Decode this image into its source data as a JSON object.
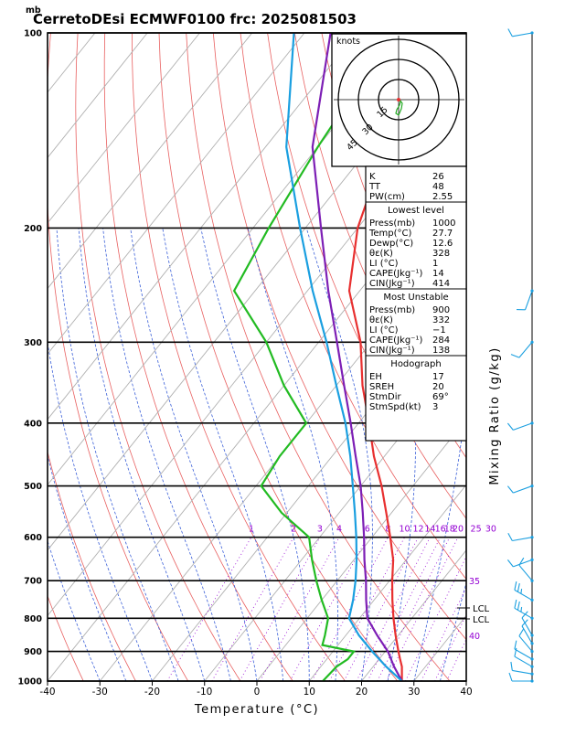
{
  "title": "CerretoDEsi ECMWF0100  frc: 2025081503",
  "pressure_unit": "mb",
  "xlabel": "Temperature (°C)",
  "right_label": "Mixing Ratio (g/kg)",
  "hodograph": {
    "unit": "knots",
    "ring_labels": [
      "15",
      "30",
      "45"
    ]
  },
  "indices": {
    "top": [
      {
        "label": "K",
        "value": "26"
      },
      {
        "label": "TT",
        "value": "48"
      },
      {
        "label": "PW(cm)",
        "value": "2.55"
      }
    ],
    "lowest_level": {
      "heading": "Lowest level",
      "rows": [
        {
          "label": "Press(mb)",
          "value": "1000"
        },
        {
          "label": "Temp(°C)",
          "value": "27.7"
        },
        {
          "label": "Dewp(°C)",
          "value": "12.6"
        },
        {
          "label": "θε(K)",
          "value": "328"
        },
        {
          "label": "LI (°C)",
          "value": "1"
        },
        {
          "label": "CAPE(Jkg⁻¹)",
          "value": "14"
        },
        {
          "label": "CIN(Jkg⁻¹)",
          "value": "414"
        }
      ]
    },
    "most_unstable": {
      "heading": "Most Unstable",
      "rows": [
        {
          "label": "Press(mb)",
          "value": "900"
        },
        {
          "label": "θε(K)",
          "value": "332"
        },
        {
          "label": "LI (°C)",
          "value": "−1"
        },
        {
          "label": "CAPE(Jkg⁻¹)",
          "value": "284"
        },
        {
          "label": "CIN(Jkg⁻¹)",
          "value": "138"
        }
      ]
    },
    "hodograph_box": {
      "heading": "Hodograph",
      "rows": [
        {
          "label": "EH",
          "value": "17"
        },
        {
          "label": "SREH",
          "value": "20"
        },
        {
          "label": "StmDir",
          "value": "69°"
        },
        {
          "label": "StmSpd(kt)",
          "value": "3"
        }
      ]
    }
  },
  "lcl_labels": [
    "LCL",
    "LCL"
  ],
  "chart_data": {
    "type": "line",
    "subtype": "skew-T log-P diagram",
    "x_axis": {
      "label": "Temperature (°C)",
      "range": [
        -40,
        40
      ],
      "ticks": [
        -40,
        -30,
        -20,
        -10,
        0,
        10,
        20,
        30,
        40
      ]
    },
    "y_axis": {
      "label": "mb",
      "scale": "log",
      "range": [
        1000,
        100
      ],
      "ticks": [
        1000,
        900,
        800,
        700,
        600,
        500,
        400,
        300,
        200,
        100
      ]
    },
    "mixing_ratio_labels": [
      "1",
      "2",
      "3",
      "4",
      "6",
      "8",
      "10",
      "12",
      "14",
      "16",
      "18",
      "20",
      "25",
      "30",
      "35",
      "40"
    ],
    "series": [
      {
        "key": "temperature",
        "color": "#e83030",
        "points": [
          [
            1000,
            27.7
          ],
          [
            950,
            25.5
          ],
          [
            925,
            24
          ],
          [
            900,
            22.5
          ],
          [
            850,
            19.5
          ],
          [
            800,
            16.5
          ],
          [
            750,
            13.5
          ],
          [
            700,
            10.5
          ],
          [
            650,
            7.5
          ],
          [
            600,
            3.5
          ],
          [
            550,
            -1
          ],
          [
            500,
            -6
          ],
          [
            450,
            -12
          ],
          [
            400,
            -18
          ],
          [
            350,
            -25
          ],
          [
            300,
            -32
          ],
          [
            250,
            -42
          ],
          [
            200,
            -50
          ],
          [
            150,
            -57
          ],
          [
            100,
            -62
          ]
        ]
      },
      {
        "key": "dewpoint",
        "color": "#22bb22",
        "points": [
          [
            1000,
            12.6
          ],
          [
            950,
            13
          ],
          [
            925,
            14
          ],
          [
            900,
            14
          ],
          [
            880,
            7
          ],
          [
            850,
            6
          ],
          [
            800,
            4
          ],
          [
            750,
            0
          ],
          [
            700,
            -4
          ],
          [
            650,
            -8
          ],
          [
            600,
            -12
          ],
          [
            550,
            -21
          ],
          [
            500,
            -29
          ],
          [
            450,
            -30
          ],
          [
            400,
            -30
          ],
          [
            350,
            -40
          ],
          [
            300,
            -50
          ],
          [
            250,
            -64
          ],
          [
            200,
            -67
          ],
          [
            150,
            -70
          ],
          [
            100,
            -73
          ]
        ]
      },
      {
        "key": "parcel",
        "color": "#7d1fb5",
        "points": [
          [
            1000,
            27.7
          ],
          [
            950,
            24
          ],
          [
            900,
            20.5
          ],
          [
            850,
            16
          ],
          [
            800,
            11.5
          ],
          [
            750,
            8.5
          ],
          [
            700,
            5.5
          ],
          [
            650,
            2
          ],
          [
            600,
            -1.5
          ],
          [
            550,
            -5.5
          ],
          [
            500,
            -10
          ],
          [
            450,
            -15.5
          ],
          [
            400,
            -21.5
          ],
          [
            350,
            -28.5
          ],
          [
            300,
            -36.5
          ],
          [
            250,
            -46
          ],
          [
            200,
            -57
          ],
          [
            150,
            -71
          ],
          [
            100,
            -85
          ]
        ]
      },
      {
        "key": "parcel_virtual",
        "color": "#1a9fe0",
        "points": [
          [
            1000,
            27.7
          ],
          [
            950,
            22.5
          ],
          [
            900,
            17.5
          ],
          [
            850,
            12.5
          ],
          [
            800,
            8
          ],
          [
            750,
            6
          ],
          [
            700,
            3.5
          ],
          [
            650,
            0.5
          ],
          [
            600,
            -3
          ],
          [
            550,
            -7
          ],
          [
            500,
            -11.5
          ],
          [
            450,
            -16.5
          ],
          [
            400,
            -22.5
          ],
          [
            350,
            -30
          ],
          [
            300,
            -38.5
          ],
          [
            250,
            -49
          ],
          [
            200,
            -61
          ],
          [
            150,
            -76
          ],
          [
            100,
            -92
          ]
        ]
      }
    ],
    "wind_profile": [
      {
        "p": 1000,
        "dir": 270,
        "kt": 10
      },
      {
        "p": 975,
        "dir": 280,
        "kt": 10
      },
      {
        "p": 950,
        "dir": 300,
        "kt": 10
      },
      {
        "p": 925,
        "dir": 300,
        "kt": 10
      },
      {
        "p": 900,
        "dir": 320,
        "kt": 10
      },
      {
        "p": 875,
        "dir": 330,
        "kt": 10
      },
      {
        "p": 850,
        "dir": 330,
        "kt": 10
      },
      {
        "p": 800,
        "dir": 300,
        "kt": 15
      },
      {
        "p": 750,
        "dir": 300,
        "kt": 15
      },
      {
        "p": 700,
        "dir": 320,
        "kt": 10
      },
      {
        "p": 650,
        "dir": 250,
        "kt": 10
      },
      {
        "p": 600,
        "dir": 260,
        "kt": 10
      },
      {
        "p": 500,
        "dir": 250,
        "kt": 10
      },
      {
        "p": 400,
        "dir": 250,
        "kt": 10
      },
      {
        "p": 300,
        "dir": 220,
        "kt": 10
      },
      {
        "p": 250,
        "dir": 200,
        "kt": 10
      },
      {
        "p": 100,
        "dir": 260,
        "kt": 10
      }
    ]
  }
}
